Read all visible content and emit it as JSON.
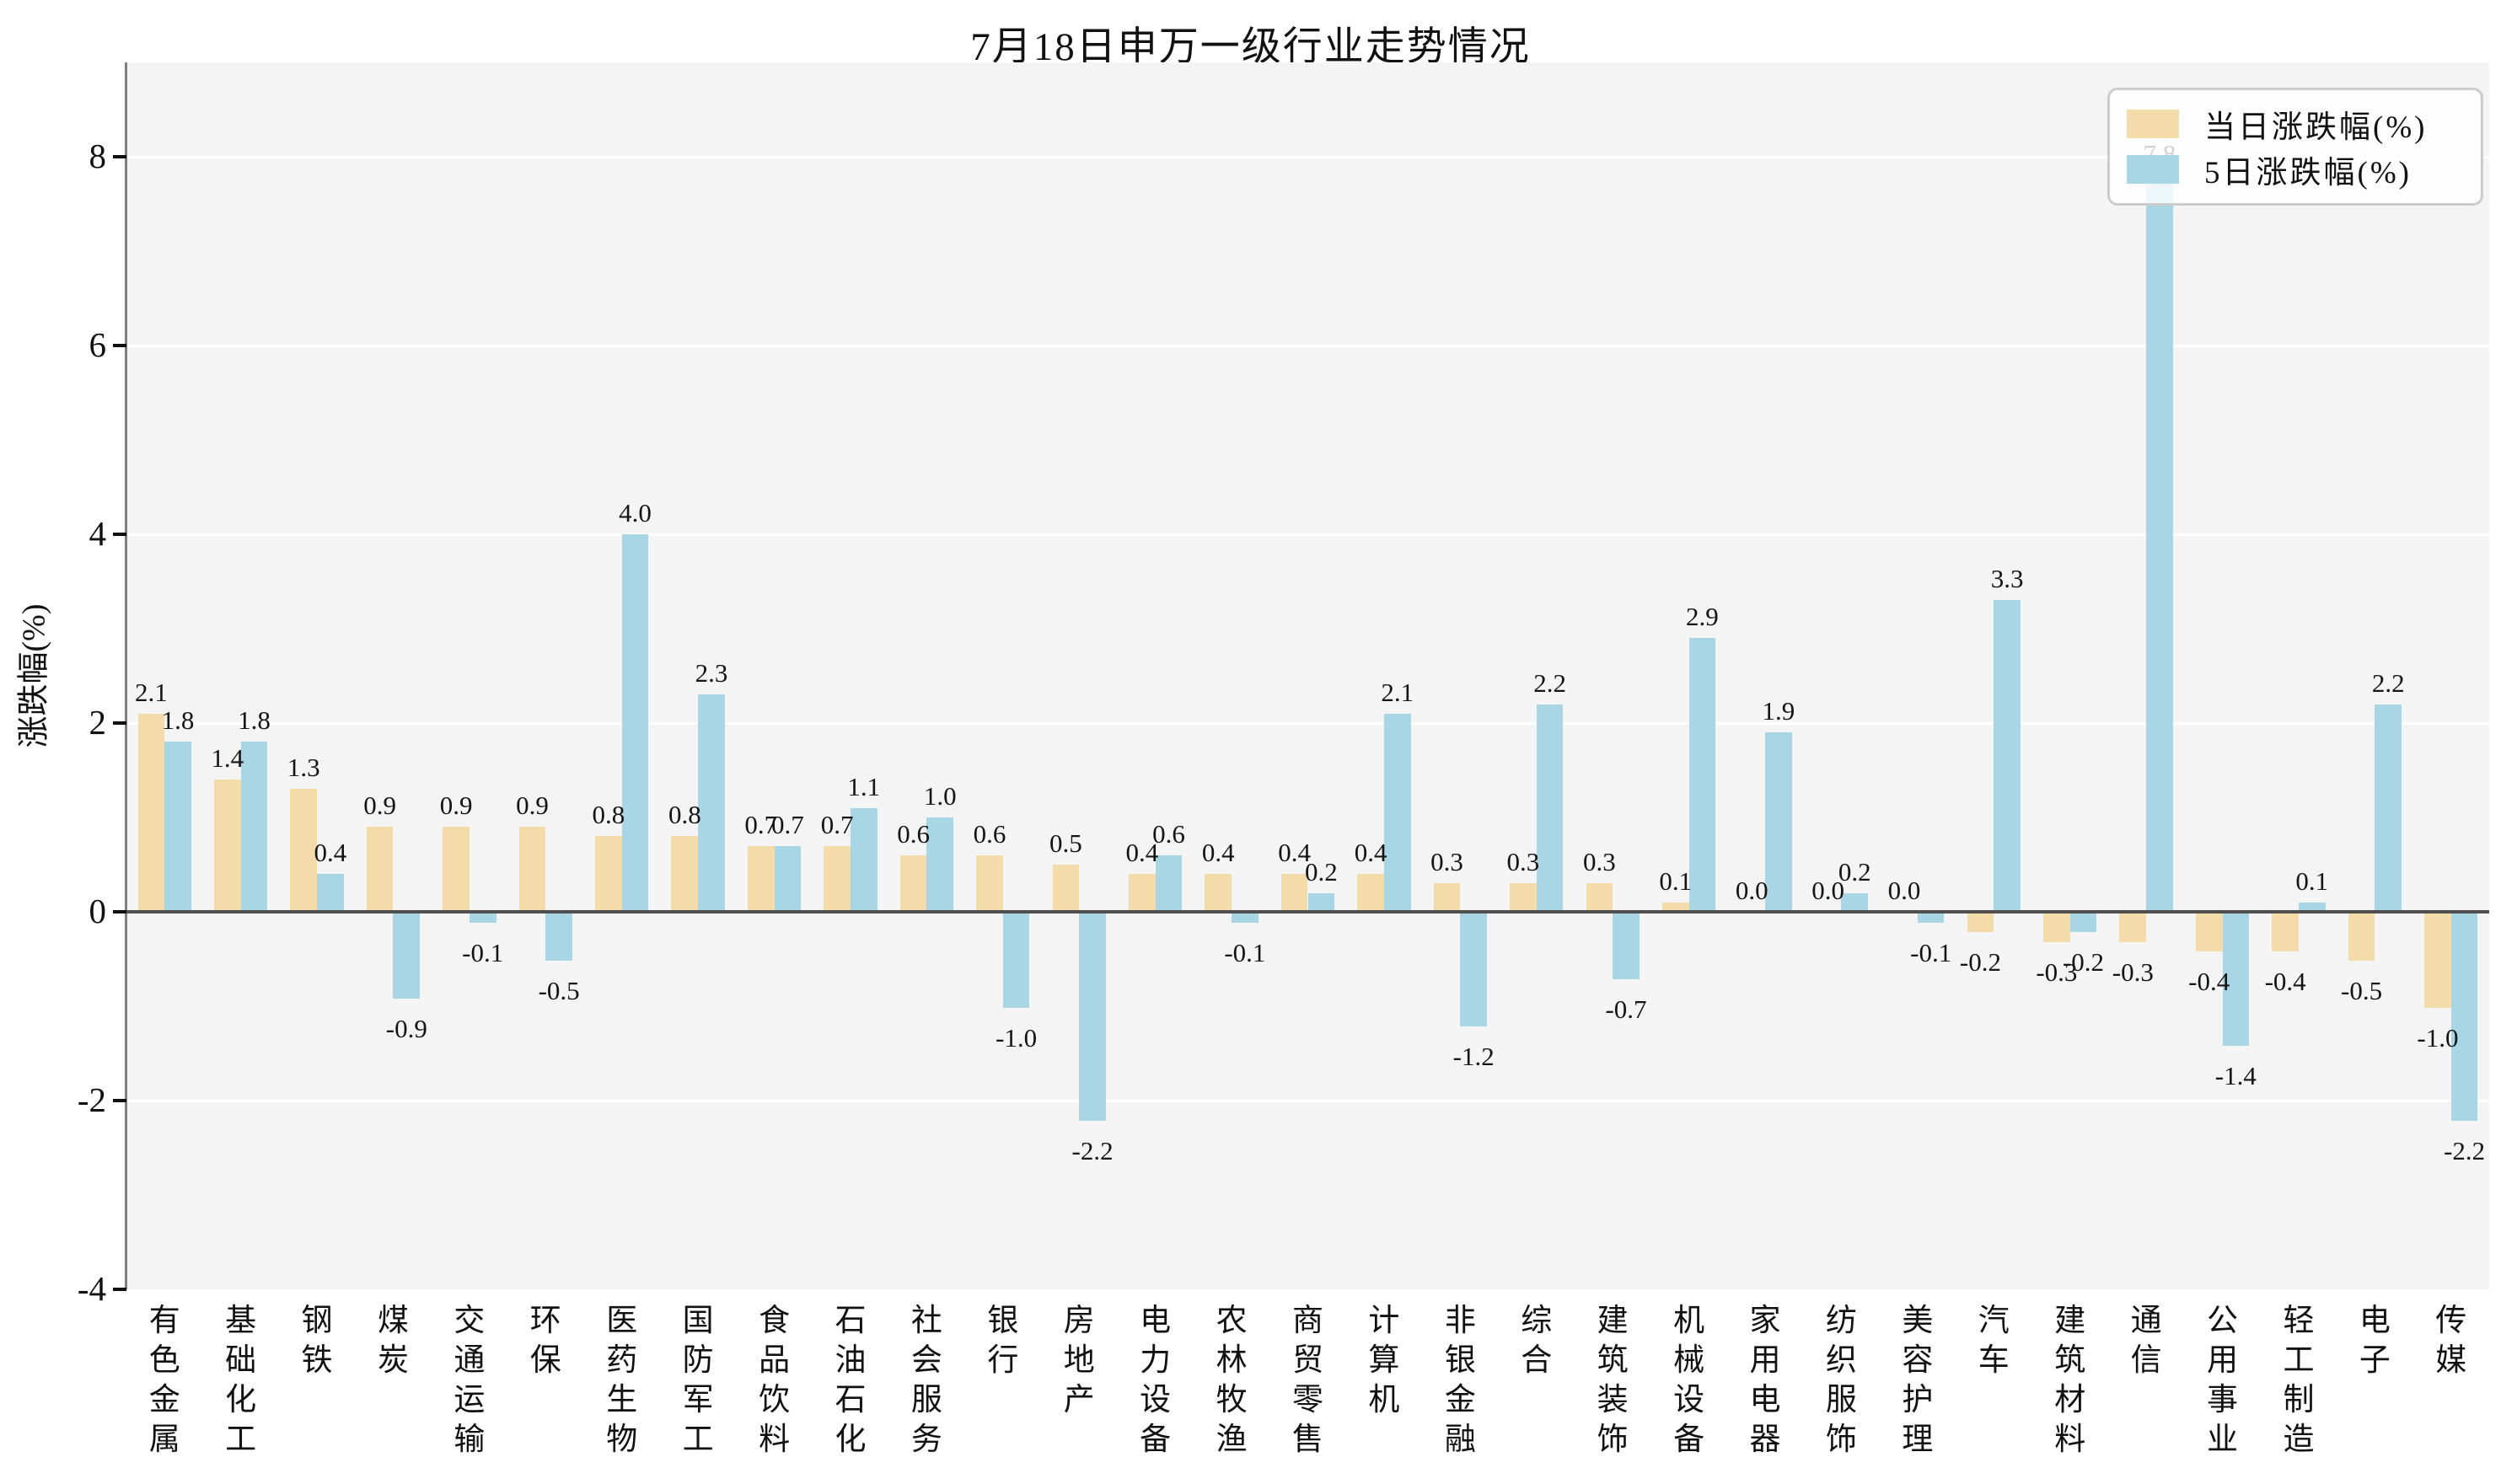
{
  "title": "7月18日申万一级行业走势情况",
  "chart_data": {
    "type": "bar",
    "title": "7月18日申万一级行业走势情况",
    "ylabel": "涨跌幅(%)",
    "ylim": [
      -4,
      9
    ],
    "yticks": [
      8,
      6,
      4,
      2,
      0,
      -2,
      -4
    ],
    "grid": true,
    "legend_position": "upper right",
    "plot_background": "#f4f4f5",
    "categories": [
      "有色金属",
      "基础化工",
      "钢铁",
      "煤炭",
      "交通运输",
      "环保",
      "医药生物",
      "国防军工",
      "食品饮料",
      "石油石化",
      "社会服务",
      "银行",
      "房地产",
      "电力设备",
      "农林牧渔",
      "商贸零售",
      "计算机",
      "非银金融",
      "综合",
      "建筑装饰",
      "机械设备",
      "家用电器",
      "纺织服饰",
      "美容护理",
      "汽车",
      "建筑材料",
      "通信",
      "公用事业",
      "轻工制造",
      "电子",
      "传媒"
    ],
    "series": [
      {
        "name": "当日涨跌幅(%)",
        "color": "#F3DCA9",
        "values": [
          2.1,
          1.4,
          1.3,
          0.9,
          0.9,
          0.9,
          0.8,
          0.8,
          0.7,
          0.7,
          0.6,
          0.6,
          0.5,
          0.4,
          0.4,
          0.4,
          0.4,
          0.3,
          0.3,
          0.3,
          0.1,
          0.0,
          0.0,
          0.0,
          -0.2,
          -0.3,
          -0.3,
          -0.4,
          -0.4,
          -0.5,
          -1.0
        ]
      },
      {
        "name": "5日涨跌幅(%)",
        "color": "#A9D6E5",
        "values": [
          1.8,
          1.8,
          0.4,
          -0.9,
          -0.1,
          -0.5,
          4.0,
          2.3,
          0.7,
          1.1,
          1.0,
          -1.0,
          -2.2,
          0.6,
          -0.1,
          0.2,
          2.1,
          -1.2,
          2.2,
          -0.7,
          2.9,
          1.9,
          0.2,
          -0.1,
          3.3,
          -0.2,
          7.8,
          -1.4,
          0.1,
          2.2,
          -2.2
        ]
      }
    ]
  }
}
